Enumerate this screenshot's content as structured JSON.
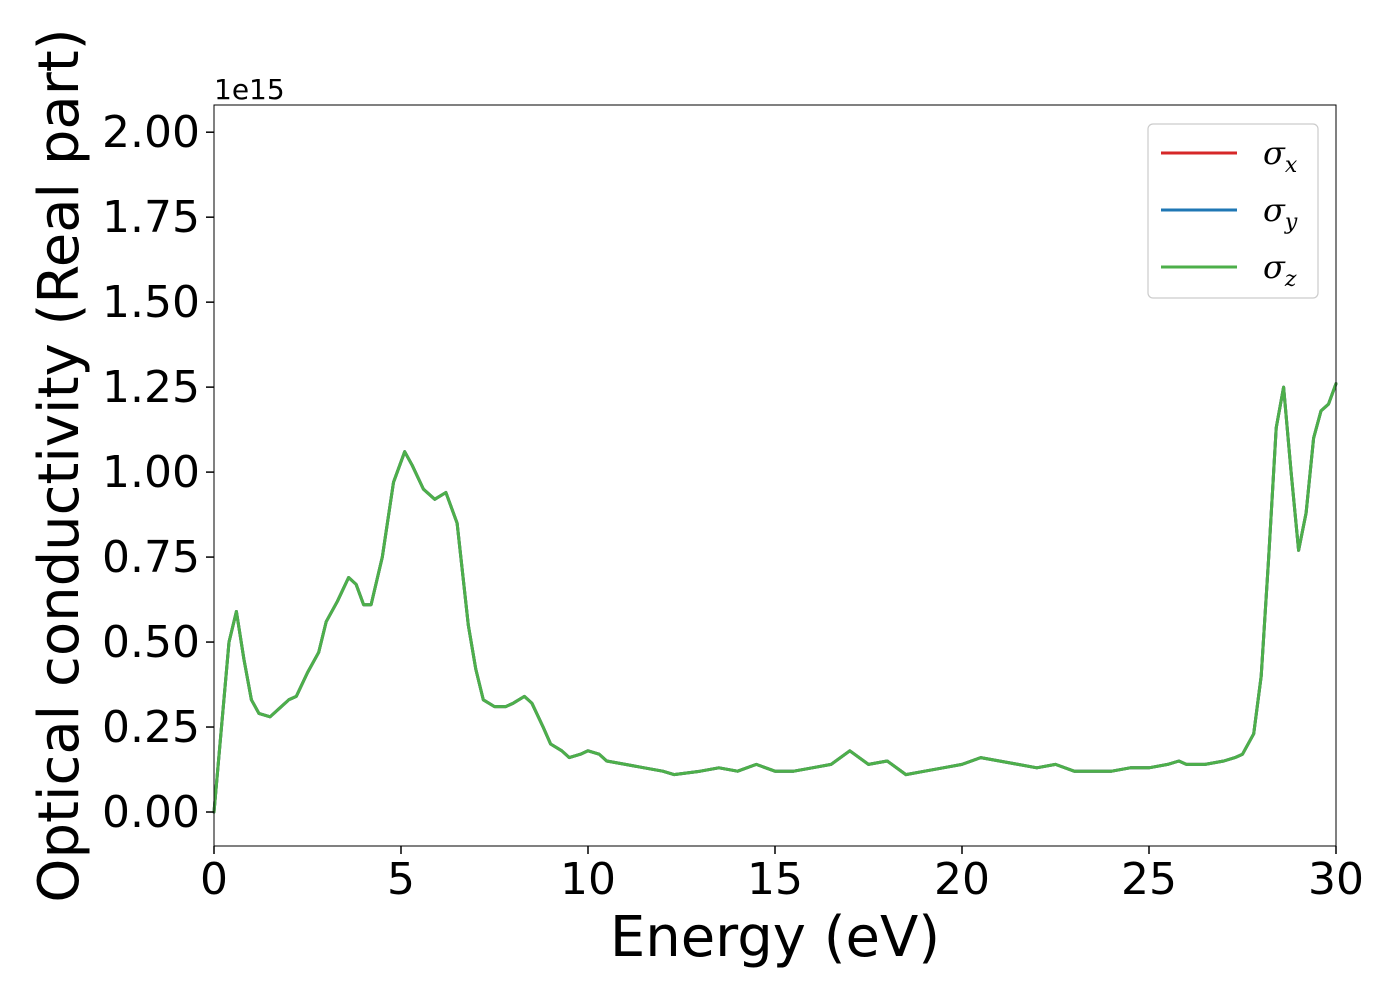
{
  "chart_data": {
    "type": "line",
    "xlabel": "Energy (eV)",
    "ylabel": "Optical conductivity (Real part)",
    "y_offset_label": "1e15",
    "xlim": [
      0,
      30
    ],
    "ylim": [
      -0.1,
      2.08
    ],
    "x_ticks": [
      0,
      5,
      10,
      15,
      20,
      25,
      30
    ],
    "x_tick_labels": [
      "0",
      "5",
      "10",
      "15",
      "20",
      "25",
      "30"
    ],
    "y_ticks": [
      0,
      0.25,
      0.5,
      0.75,
      1.0,
      1.25,
      1.5,
      1.75,
      2.0
    ],
    "y_tick_labels": [
      "0.00",
      "0.25",
      "0.50",
      "0.75",
      "1.00",
      "1.25",
      "1.50",
      "1.75",
      "2.00"
    ],
    "grid": false,
    "legend_position": "top-right",
    "x": [
      0,
      0.2,
      0.4,
      0.6,
      0.8,
      1.0,
      1.2,
      1.5,
      1.8,
      2.0,
      2.2,
      2.5,
      2.8,
      3.0,
      3.3,
      3.6,
      3.8,
      4.0,
      4.2,
      4.5,
      4.8,
      5.1,
      5.3,
      5.6,
      5.9,
      6.2,
      6.5,
      6.8,
      7.0,
      7.2,
      7.5,
      7.8,
      8.0,
      8.3,
      8.5,
      8.8,
      9.0,
      9.3,
      9.5,
      9.8,
      10.0,
      10.3,
      10.5,
      11.0,
      11.5,
      12.0,
      12.3,
      13.0,
      13.5,
      14.0,
      14.5,
      15.0,
      15.5,
      16.0,
      16.5,
      17.0,
      17.5,
      18.0,
      18.5,
      19.0,
      19.5,
      20.0,
      20.5,
      21.0,
      21.5,
      22.0,
      22.5,
      23.0,
      23.5,
      24.0,
      24.5,
      25.0,
      25.5,
      25.8,
      26.0,
      26.5,
      27.0,
      27.3,
      27.5,
      27.8,
      28.0,
      28.2,
      28.4,
      28.6,
      28.8,
      29.0,
      29.2,
      29.4,
      29.6,
      29.8,
      30.0
    ],
    "series": [
      {
        "name": "σ_x",
        "name_base": "σ",
        "name_sub": "x",
        "color": "#d62728",
        "values": [
          0.0,
          0.25,
          0.5,
          0.59,
          0.45,
          0.33,
          0.29,
          0.28,
          0.31,
          0.33,
          0.34,
          0.41,
          0.47,
          0.56,
          0.62,
          0.69,
          0.67,
          0.61,
          0.61,
          0.75,
          0.97,
          1.06,
          1.02,
          0.95,
          0.92,
          0.94,
          0.85,
          0.55,
          0.42,
          0.33,
          0.31,
          0.31,
          0.32,
          0.34,
          0.32,
          0.25,
          0.2,
          0.18,
          0.16,
          0.17,
          0.18,
          0.17,
          0.15,
          0.14,
          0.13,
          0.12,
          0.11,
          0.12,
          0.13,
          0.12,
          0.14,
          0.12,
          0.12,
          0.13,
          0.14,
          0.18,
          0.14,
          0.15,
          0.11,
          0.12,
          0.13,
          0.14,
          0.16,
          0.15,
          0.14,
          0.13,
          0.14,
          0.12,
          0.12,
          0.12,
          0.13,
          0.13,
          0.14,
          0.15,
          0.14,
          0.14,
          0.15,
          0.16,
          0.17,
          0.23,
          0.4,
          0.75,
          1.13,
          1.25,
          1.0,
          0.77,
          0.88,
          1.1,
          1.18,
          1.2,
          1.26
        ]
      },
      {
        "name": "σ_y",
        "name_base": "σ",
        "name_sub": "y",
        "color": "#1f77b4",
        "values": [
          0.0,
          0.25,
          0.5,
          0.59,
          0.45,
          0.33,
          0.29,
          0.28,
          0.31,
          0.33,
          0.34,
          0.41,
          0.47,
          0.56,
          0.62,
          0.69,
          0.67,
          0.61,
          0.61,
          0.75,
          0.97,
          1.06,
          1.02,
          0.95,
          0.92,
          0.94,
          0.85,
          0.55,
          0.42,
          0.33,
          0.31,
          0.31,
          0.32,
          0.34,
          0.32,
          0.25,
          0.2,
          0.18,
          0.16,
          0.17,
          0.18,
          0.17,
          0.15,
          0.14,
          0.13,
          0.12,
          0.11,
          0.12,
          0.13,
          0.12,
          0.14,
          0.12,
          0.12,
          0.13,
          0.14,
          0.18,
          0.14,
          0.15,
          0.11,
          0.12,
          0.13,
          0.14,
          0.16,
          0.15,
          0.14,
          0.13,
          0.14,
          0.12,
          0.12,
          0.12,
          0.13,
          0.13,
          0.14,
          0.15,
          0.14,
          0.14,
          0.15,
          0.16,
          0.17,
          0.23,
          0.4,
          0.75,
          1.13,
          1.25,
          1.0,
          0.77,
          0.88,
          1.1,
          1.18,
          1.2,
          1.26
        ]
      },
      {
        "name": "σ_z",
        "name_base": "σ",
        "name_sub": "z",
        "color": "#4daf4a",
        "values": [
          0.0,
          0.25,
          0.5,
          0.59,
          0.45,
          0.33,
          0.29,
          0.28,
          0.31,
          0.33,
          0.34,
          0.41,
          0.47,
          0.56,
          0.62,
          0.69,
          0.67,
          0.61,
          0.61,
          0.75,
          0.97,
          1.06,
          1.02,
          0.95,
          0.92,
          0.94,
          0.85,
          0.55,
          0.42,
          0.33,
          0.31,
          0.31,
          0.32,
          0.34,
          0.32,
          0.25,
          0.2,
          0.18,
          0.16,
          0.17,
          0.18,
          0.17,
          0.15,
          0.14,
          0.13,
          0.12,
          0.11,
          0.12,
          0.13,
          0.12,
          0.14,
          0.12,
          0.12,
          0.13,
          0.14,
          0.18,
          0.14,
          0.15,
          0.11,
          0.12,
          0.13,
          0.14,
          0.16,
          0.15,
          0.14,
          0.13,
          0.14,
          0.12,
          0.12,
          0.12,
          0.13,
          0.13,
          0.14,
          0.15,
          0.14,
          0.14,
          0.15,
          0.16,
          0.17,
          0.23,
          0.4,
          0.75,
          1.13,
          1.25,
          1.0,
          0.77,
          0.88,
          1.1,
          1.18,
          1.2,
          1.26
        ]
      }
    ]
  }
}
